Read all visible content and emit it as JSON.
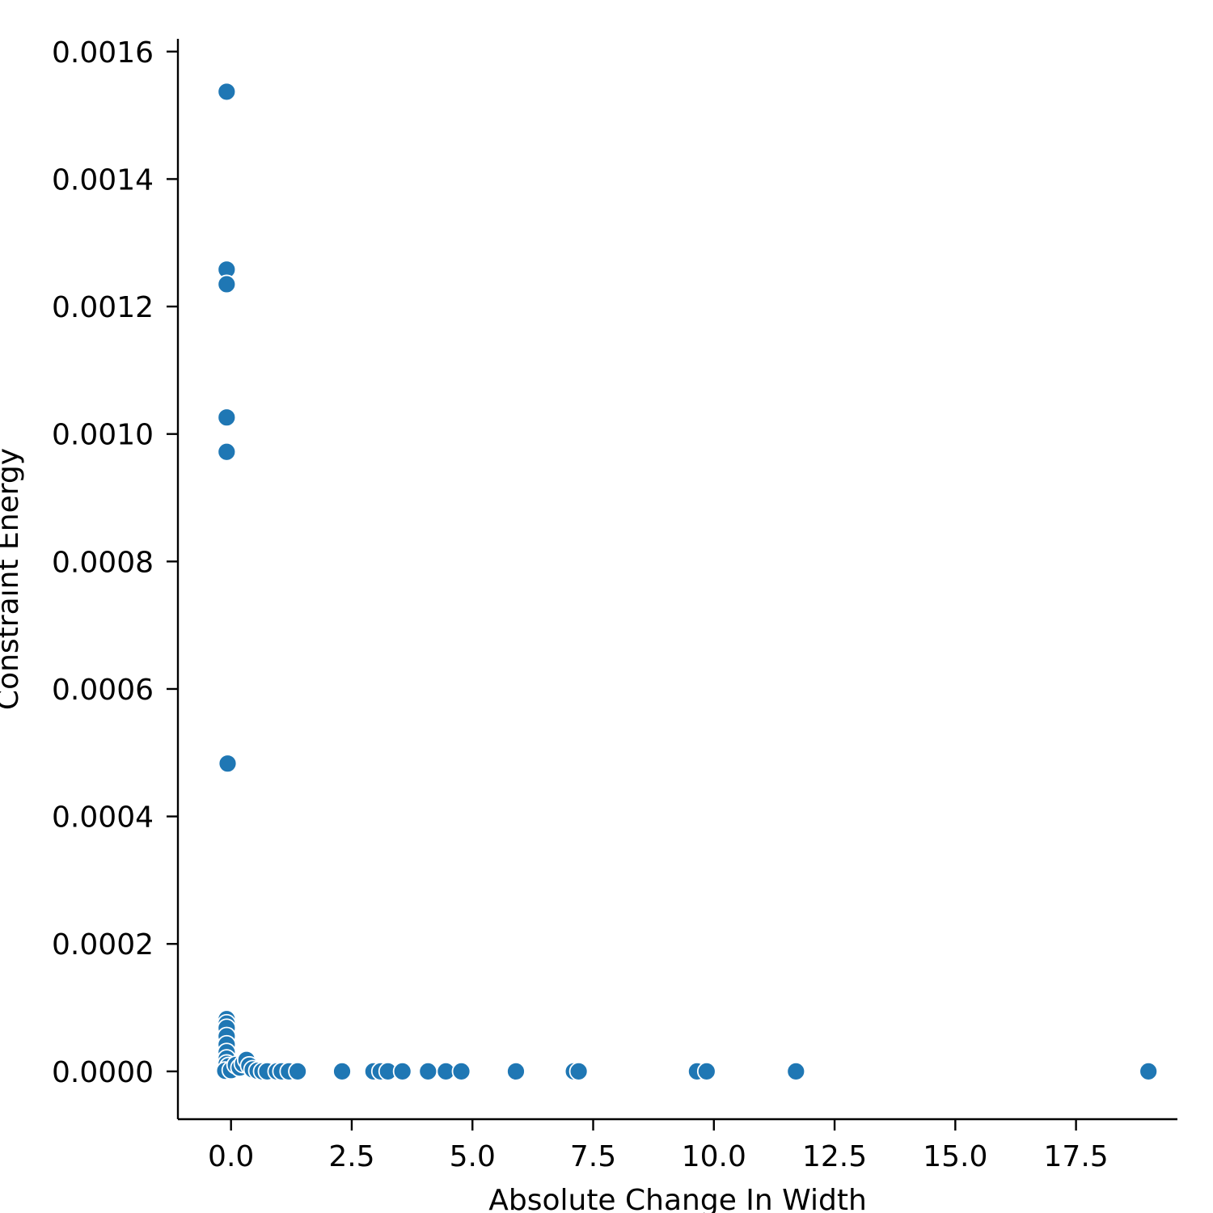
{
  "chart_data": {
    "type": "scatter",
    "title": "",
    "xlabel": "Absolute Change In Width",
    "ylabel": "Constraint Energy",
    "xlim": [
      -1.1,
      19.6
    ],
    "ylim": [
      -7.5e-05,
      0.00162
    ],
    "xticks": [
      0.0,
      2.5,
      5.0,
      7.5,
      10.0,
      12.5,
      15.0,
      17.5
    ],
    "xtick_labels": [
      "0.0",
      "2.5",
      "5.0",
      "7.5",
      "10.0",
      "12.5",
      "15.0",
      "17.5"
    ],
    "yticks": [
      0.0,
      0.0002,
      0.0004,
      0.0006,
      0.0008,
      0.001,
      0.0012,
      0.0014,
      0.0016
    ],
    "ytick_labels": [
      "0.0000",
      "0.0002",
      "0.0004",
      "0.0006",
      "0.0008",
      "0.0010",
      "0.0012",
      "0.0014",
      "0.0016"
    ],
    "grid": false,
    "marker_color": "#1f77b4",
    "series": [
      {
        "points": [
          {
            "x": -0.09,
            "y": 0.001537
          },
          {
            "x": -0.09,
            "y": 0.001258
          },
          {
            "x": -0.09,
            "y": 0.001235
          },
          {
            "x": -0.09,
            "y": 0.001026
          },
          {
            "x": -0.09,
            "y": 0.000972
          },
          {
            "x": -0.07,
            "y": 0.000483
          },
          {
            "x": -0.09,
            "y": 8.2e-05
          },
          {
            "x": -0.09,
            "y": 7.5e-05
          },
          {
            "x": -0.09,
            "y": 6.8e-05
          },
          {
            "x": -0.09,
            "y": 5.5e-05
          },
          {
            "x": -0.09,
            "y": 4.2e-05
          },
          {
            "x": -0.09,
            "y": 3e-05
          },
          {
            "x": -0.09,
            "y": 2e-05
          },
          {
            "x": -0.09,
            "y": 1.2e-05
          },
          {
            "x": -0.05,
            "y": 8e-06
          },
          {
            "x": -0.12,
            "y": 1e-06
          },
          {
            "x": 0.0,
            "y": 2e-06
          },
          {
            "x": 0.1,
            "y": 1e-05
          },
          {
            "x": 0.18,
            "y": 6e-06
          },
          {
            "x": 0.25,
            "y": 1.2e-05
          },
          {
            "x": 0.32,
            "y": 1.8e-05
          },
          {
            "x": 0.38,
            "y": 9e-06
          },
          {
            "x": 0.45,
            "y": 3e-06
          },
          {
            "x": 0.55,
            "y": 1e-06
          },
          {
            "x": 0.65,
            "y": 0.0
          },
          {
            "x": 0.75,
            "y": 0.0
          },
          {
            "x": 0.95,
            "y": 0.0
          },
          {
            "x": 1.05,
            "y": 0.0
          },
          {
            "x": 1.2,
            "y": 0.0
          },
          {
            "x": 1.38,
            "y": 0.0
          },
          {
            "x": 2.3,
            "y": 0.0
          },
          {
            "x": 2.95,
            "y": 0.0
          },
          {
            "x": 3.1,
            "y": 0.0
          },
          {
            "x": 3.25,
            "y": 0.0
          },
          {
            "x": 3.55,
            "y": 0.0
          },
          {
            "x": 4.08,
            "y": 0.0
          },
          {
            "x": 4.45,
            "y": 0.0
          },
          {
            "x": 4.77,
            "y": 0.0
          },
          {
            "x": 5.9,
            "y": 0.0
          },
          {
            "x": 7.1,
            "y": 0.0
          },
          {
            "x": 7.2,
            "y": 0.0
          },
          {
            "x": 9.65,
            "y": 0.0
          },
          {
            "x": 9.85,
            "y": 0.0
          },
          {
            "x": 11.7,
            "y": 0.0
          },
          {
            "x": 19.0,
            "y": 0.0
          }
        ]
      }
    ]
  }
}
